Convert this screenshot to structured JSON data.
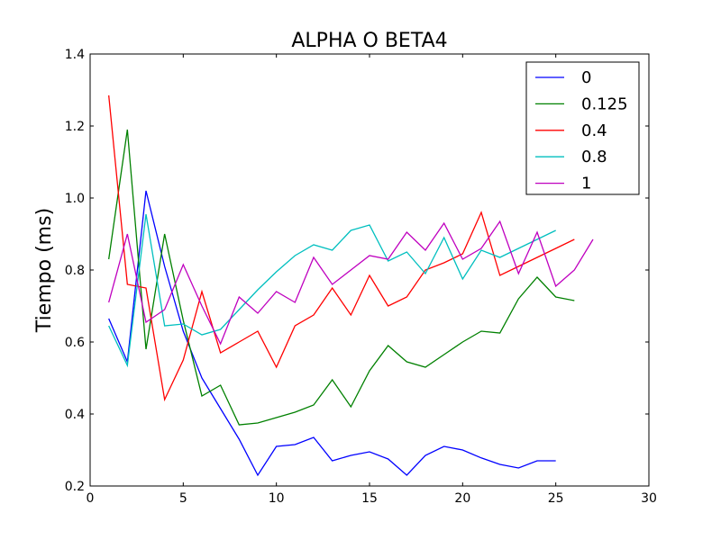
{
  "chart_data": {
    "type": "line",
    "title": "ALPHA O BETA4",
    "xlabel": "",
    "ylabel": "Tiempo (ms)",
    "xlim": [
      0,
      30
    ],
    "ylim": [
      0.2,
      1.4
    ],
    "xticks": [
      0,
      5,
      10,
      15,
      20,
      25,
      30
    ],
    "yticks": [
      0.2,
      0.4,
      0.6,
      0.8,
      1.0,
      1.2,
      1.4
    ],
    "xtick_labels": [
      "0",
      "5",
      "10",
      "15",
      "20",
      "25",
      "30"
    ],
    "ytick_labels": [
      "0.2",
      "0.4",
      "0.6",
      "0.8",
      "1.0",
      "1.2",
      "1.4"
    ],
    "grid": false,
    "legend_position": "top-right",
    "series": [
      {
        "name": "0",
        "color": "#0000ff",
        "x": [
          1,
          2,
          3,
          4,
          5,
          6,
          7,
          8,
          9,
          10,
          11,
          12,
          13,
          14,
          15,
          16,
          17,
          18,
          19,
          20,
          21,
          22,
          23,
          24,
          25
        ],
        "y": [
          0.665,
          0.545,
          1.02,
          0.81,
          0.63,
          0.5,
          0.415,
          0.33,
          0.23,
          0.31,
          0.315,
          0.335,
          0.27,
          0.285,
          0.295,
          0.275,
          0.23,
          0.285,
          0.31,
          0.3,
          0.278,
          0.26,
          0.25,
          0.27,
          0.27
        ]
      },
      {
        "name": "0.125",
        "color": "#008000",
        "x": [
          1,
          2,
          3,
          4,
          5,
          6,
          7,
          8,
          9,
          10,
          11,
          12,
          13,
          14,
          15,
          16,
          17,
          18,
          19,
          20,
          21,
          22,
          23,
          24,
          25,
          26
        ],
        "y": [
          0.83,
          1.19,
          0.58,
          0.9,
          0.66,
          0.45,
          0.48,
          0.37,
          0.375,
          0.39,
          0.405,
          0.425,
          0.495,
          0.42,
          0.52,
          0.59,
          0.545,
          0.53,
          0.565,
          0.6,
          0.63,
          0.625,
          0.72,
          0.78,
          0.725,
          0.715
        ]
      },
      {
        "name": "0.4",
        "color": "#ff0000",
        "x": [
          1,
          2,
          3,
          4,
          5,
          6,
          7,
          8,
          9,
          10,
          11,
          12,
          13,
          14,
          15,
          16,
          17,
          18,
          19,
          20,
          21,
          22,
          23,
          24,
          25,
          26
        ],
        "y": [
          1.285,
          0.76,
          0.75,
          0.44,
          0.55,
          0.74,
          0.57,
          0.6,
          0.63,
          0.53,
          0.645,
          0.675,
          0.75,
          0.675,
          0.785,
          0.7,
          0.725,
          0.8,
          0.82,
          0.845,
          0.96,
          0.785,
          0.81,
          0.835,
          0.86,
          0.885
        ]
      },
      {
        "name": "0.8",
        "color": "#00bfbf",
        "x": [
          1,
          2,
          3,
          4,
          5,
          6,
          7,
          8,
          9,
          10,
          11,
          12,
          13,
          14,
          15,
          16,
          17,
          18,
          19,
          20,
          21,
          22,
          23,
          24,
          25
        ],
        "y": [
          0.645,
          0.535,
          0.955,
          0.645,
          0.65,
          0.62,
          0.635,
          0.69,
          0.745,
          0.795,
          0.84,
          0.87,
          0.855,
          0.91,
          0.925,
          0.825,
          0.85,
          0.79,
          0.89,
          0.775,
          0.855,
          0.835,
          0.86,
          0.885,
          0.91
        ]
      },
      {
        "name": "1",
        "color": "#bf00bf",
        "x": [
          1,
          2,
          3,
          4,
          5,
          6,
          7,
          8,
          9,
          10,
          11,
          12,
          13,
          14,
          15,
          16,
          17,
          18,
          19,
          20,
          21,
          22,
          23,
          24,
          25,
          26,
          27
        ],
        "y": [
          0.71,
          0.9,
          0.655,
          0.69,
          0.815,
          0.7,
          0.595,
          0.725,
          0.68,
          0.74,
          0.71,
          0.835,
          0.76,
          0.8,
          0.84,
          0.83,
          0.905,
          0.855,
          0.93,
          0.83,
          0.86,
          0.935,
          0.79,
          0.905,
          0.755,
          0.8,
          0.885
        ]
      }
    ]
  }
}
